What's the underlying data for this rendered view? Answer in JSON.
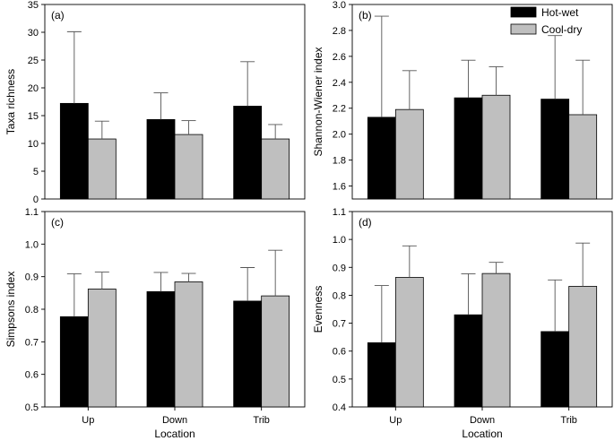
{
  "colors": {
    "hot_wet": "#000000",
    "cool_dry": "#bfbfbf",
    "axis": "#000000"
  },
  "legend": {
    "items": [
      "Hot-wet",
      "Cool-dry"
    ]
  },
  "chart_data": [
    {
      "type": "bar",
      "panel_label": "(a)",
      "ylabel": "Taxa richness",
      "xlabel": "",
      "categories": [
        "Up",
        "Down",
        "Trib"
      ],
      "ylim": [
        0,
        35
      ],
      "yticks": [
        "0",
        "5",
        "10",
        "15",
        "20",
        "25",
        "30",
        "35"
      ],
      "series": [
        {
          "name": "Hot-wet",
          "values": [
            17.2,
            14.3,
            16.7
          ],
          "error": [
            12.9,
            4.8,
            8.0
          ]
        },
        {
          "name": "Cool-dry",
          "values": [
            10.8,
            11.6,
            10.8
          ],
          "error": [
            3.2,
            2.5,
            2.6
          ]
        }
      ],
      "show_xticklabels": false
    },
    {
      "type": "bar",
      "panel_label": "(b)",
      "ylabel": "Shannon-Wiener index",
      "xlabel": "",
      "categories": [
        "Up",
        "Down",
        "Trib"
      ],
      "ylim": [
        1.5,
        3.0
      ],
      "yticks": [
        "1.6",
        "1.8",
        "2.0",
        "2.2",
        "2.4",
        "2.6",
        "2.8",
        "3.0"
      ],
      "series": [
        {
          "name": "Hot-wet",
          "values": [
            2.13,
            2.28,
            2.27
          ],
          "error": [
            0.78,
            0.29,
            0.49
          ]
        },
        {
          "name": "Cool-dry",
          "values": [
            2.19,
            2.3,
            2.15
          ],
          "error": [
            0.3,
            0.22,
            0.42
          ]
        }
      ],
      "show_xticklabels": false
    },
    {
      "type": "bar",
      "panel_label": "(c)",
      "ylabel": "Simpsons index",
      "xlabel": "Location",
      "categories": [
        "Up",
        "Down",
        "Trib"
      ],
      "ylim": [
        0.5,
        1.1
      ],
      "yticks": [
        "0.5",
        "0.6",
        "0.7",
        "0.8",
        "0.9",
        "1.0",
        "1.1"
      ],
      "series": [
        {
          "name": "Hot-wet",
          "values": [
            0.777,
            0.854,
            0.825
          ],
          "error": [
            0.132,
            0.059,
            0.103
          ]
        },
        {
          "name": "Cool-dry",
          "values": [
            0.862,
            0.884,
            0.841
          ],
          "error": [
            0.052,
            0.026,
            0.14
          ]
        }
      ],
      "show_xticklabels": true
    },
    {
      "type": "bar",
      "panel_label": "(d)",
      "ylabel": "Evenness",
      "xlabel": "Location",
      "categories": [
        "Up",
        "Down",
        "Trib"
      ],
      "ylim": [
        0.4,
        1.1
      ],
      "yticks": [
        "0.4",
        "0.5",
        "0.6",
        "0.7",
        "0.8",
        "0.9",
        "1.0",
        "1.1"
      ],
      "series": [
        {
          "name": "Hot-wet",
          "values": [
            0.63,
            0.73,
            0.67
          ],
          "error": [
            0.205,
            0.147,
            0.185
          ]
        },
        {
          "name": "Cool-dry",
          "values": [
            0.864,
            0.878,
            0.832
          ],
          "error": [
            0.113,
            0.04,
            0.155
          ]
        }
      ],
      "show_xticklabels": true
    }
  ]
}
